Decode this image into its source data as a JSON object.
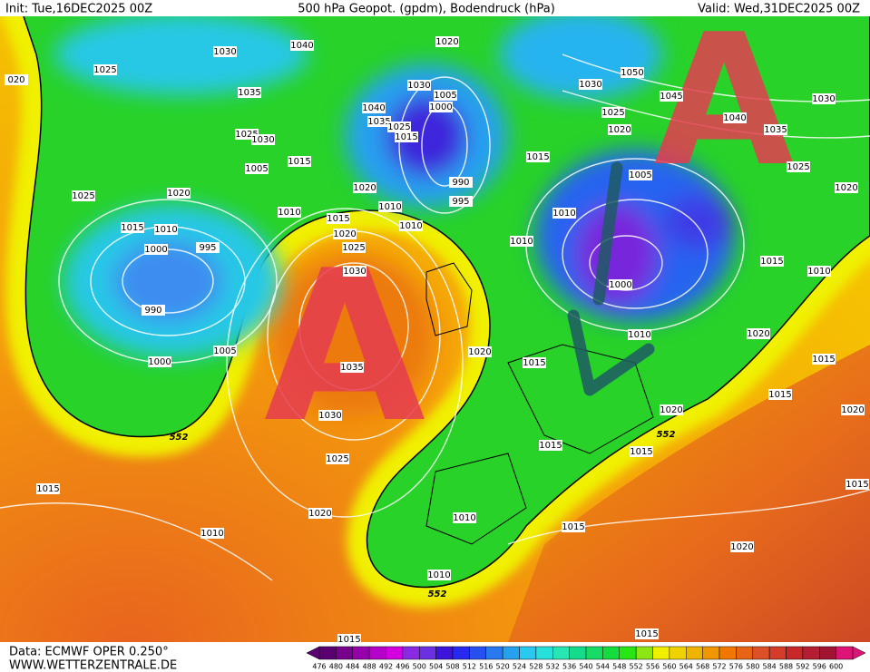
{
  "header": {
    "init": "Init: Tue,16DEC2025 00Z",
    "title": "500 hPa Geopot. (gpdm), Bodendruck (hPa)",
    "valid": "Valid: Wed,31DEC2025 00Z"
  },
  "footer": {
    "source": "Data: ECMWF OPER 0.250°",
    "site": "WWW.WETTERZENTRALE.DE"
  },
  "highs": [
    "A",
    "A"
  ],
  "isobar_labels": [
    "020",
    "1030",
    "1040",
    "1020",
    "1025",
    "1035",
    "1030",
    "1005",
    "1000",
    "1040",
    "1035",
    "1025",
    "1015",
    "1030",
    "1050",
    "1045",
    "1040",
    "1035",
    "1030",
    "1025",
    "1020",
    "1025",
    "1020",
    "1025",
    "1030",
    "1015",
    "1005",
    "1015",
    "1005",
    "990",
    "995",
    "1020",
    "1020",
    "1025",
    "1015",
    "1010",
    "1010",
    "1010",
    "1015",
    "1020",
    "1025",
    "1010",
    "1010",
    "1010",
    "1000",
    "995",
    "1015",
    "1010",
    "990",
    "1000",
    "1030",
    "1035",
    "1005",
    "1000",
    "1020",
    "1015",
    "1010",
    "1020",
    "1015",
    "1015",
    "1020",
    "1020",
    "1030",
    "552",
    "552",
    "1015",
    "1015",
    "1025",
    "1015",
    "1015",
    "1020",
    "1010",
    "1010",
    "1015",
    "1020",
    "1010",
    "552",
    "1015",
    "1015"
  ],
  "colorbar": {
    "labels": [
      476,
      480,
      484,
      488,
      492,
      496,
      500,
      504,
      508,
      512,
      516,
      520,
      524,
      528,
      532,
      536,
      540,
      544,
      548,
      552,
      556,
      560,
      564,
      568,
      572,
      576,
      580,
      584,
      588,
      592,
      596,
      600
    ],
    "colors": [
      "#5a0070",
      "#78008c",
      "#9600aa",
      "#b400c8",
      "#d200e0",
      "#8a2be2",
      "#6a2fe0",
      "#3c14dc",
      "#2828f0",
      "#2850f0",
      "#2878f0",
      "#28a0f0",
      "#28c8f0",
      "#28e0dc",
      "#28e6b4",
      "#14dc8c",
      "#14dc64",
      "#14dc3c",
      "#28e614",
      "#8ce614",
      "#f0f000",
      "#f0d200",
      "#f0b400",
      "#f09600",
      "#f07800",
      "#e66414",
      "#dc5028",
      "#d23c28",
      "#c82828",
      "#b41e32",
      "#a01432",
      "#dc1478"
    ]
  }
}
